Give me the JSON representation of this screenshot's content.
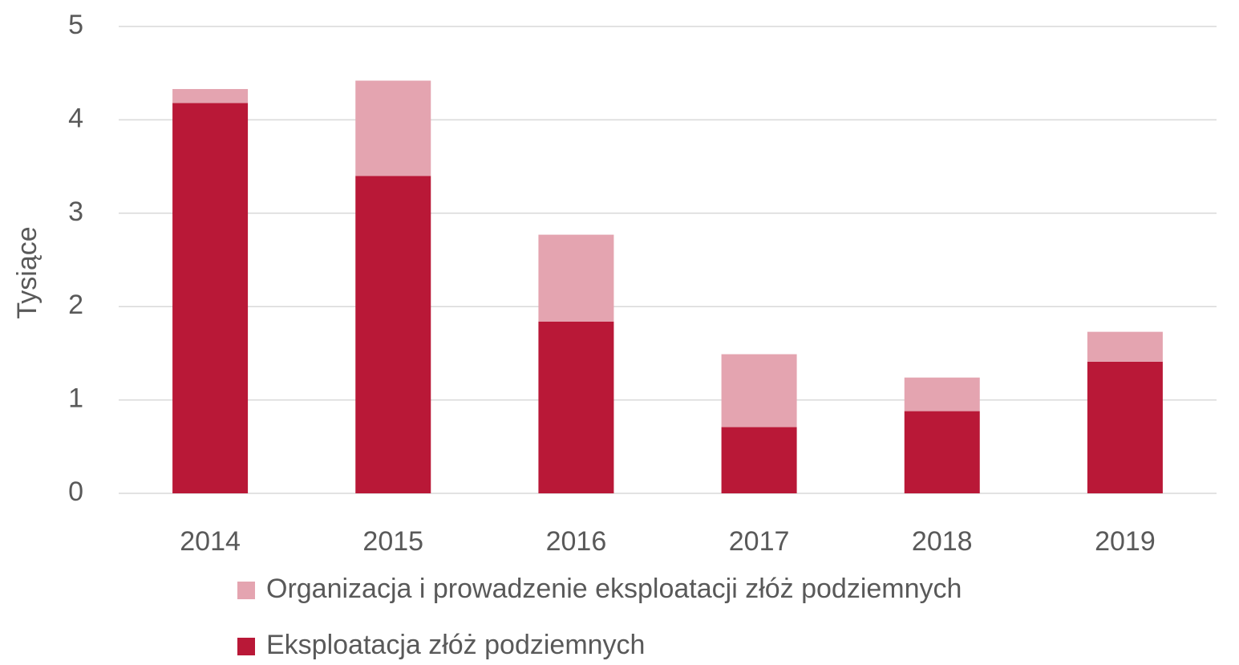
{
  "chart_data": {
    "type": "stacked_bar",
    "y_label": "Tysiące",
    "categories": [
      "2014",
      "2015",
      "2016",
      "2017",
      "2018",
      "2019"
    ],
    "series": [
      {
        "name": "Eksploatacja złóż podziemnych",
        "color": "#b91837",
        "values": [
          4.18,
          3.4,
          1.84,
          0.71,
          0.88,
          1.41
        ]
      },
      {
        "name": "Organizacja i prowadzenie eksploatacji złóż podziemnych",
        "color": "#e4a4b0",
        "values": [
          0.15,
          1.02,
          0.93,
          0.78,
          0.36,
          0.32
        ]
      }
    ],
    "ylim": [
      0,
      5
    ],
    "yticks": [
      0,
      1,
      2,
      3,
      4,
      5
    ],
    "grid": true
  }
}
